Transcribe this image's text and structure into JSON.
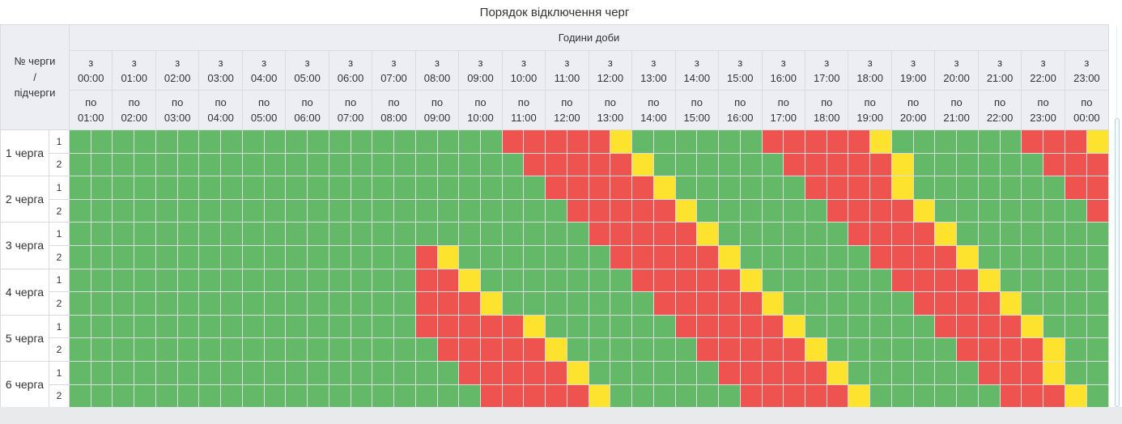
{
  "title": "Порядок відключення черг",
  "header": {
    "corner_lines": [
      "№ черги",
      "/",
      "підчерги"
    ],
    "day_hours_label": "Години доби",
    "columns": [
      {
        "from": "з 00:00",
        "to": "по 01:00"
      },
      {
        "from": "з 01:00",
        "to": "по 02:00"
      },
      {
        "from": "з 02:00",
        "to": "по 03:00"
      },
      {
        "from": "з 03:00",
        "to": "по 04:00"
      },
      {
        "from": "з 04:00",
        "to": "по 05:00"
      },
      {
        "from": "з 05:00",
        "to": "по 06:00"
      },
      {
        "from": "з 06:00",
        "to": "по 07:00"
      },
      {
        "from": "з 07:00",
        "to": "по 08:00"
      },
      {
        "from": "з 08:00",
        "to": "по 09:00"
      },
      {
        "from": "з 09:00",
        "to": "по 10:00"
      },
      {
        "from": "з 10:00",
        "to": "по 11:00"
      },
      {
        "from": "з 11:00",
        "to": "по 12:00"
      },
      {
        "from": "з 12:00",
        "to": "по 13:00"
      },
      {
        "from": "з 13:00",
        "to": "по 14:00"
      },
      {
        "from": "з 14:00",
        "to": "по 15:00"
      },
      {
        "from": "з 15:00",
        "to": "по 16:00"
      },
      {
        "from": "з 16:00",
        "to": "по 17:00"
      },
      {
        "from": "з 17:00",
        "to": "по 18:00"
      },
      {
        "from": "з 18:00",
        "to": "по 19:00"
      },
      {
        "from": "з 19:00",
        "to": "по 20:00"
      },
      {
        "from": "з 20:00",
        "to": "по 21:00"
      },
      {
        "from": "з 21:00",
        "to": "по 22:00"
      },
      {
        "from": "з 22:00",
        "to": "по 23:00"
      },
      {
        "from": "з 23:00",
        "to": "по 00:00"
      }
    ]
  },
  "chart_data": {
    "type": "heatmap",
    "title": "Порядок відключення черг",
    "x_axis_label": "Години доби",
    "y_axis_label": "№ черги / підчерги",
    "slot_minutes": 30,
    "hours": [
      "00:00",
      "01:00",
      "02:00",
      "03:00",
      "04:00",
      "05:00",
      "06:00",
      "07:00",
      "08:00",
      "09:00",
      "10:00",
      "11:00",
      "12:00",
      "13:00",
      "14:00",
      "15:00",
      "16:00",
      "17:00",
      "18:00",
      "19:00",
      "20:00",
      "21:00",
      "22:00",
      "23:00"
    ],
    "cell_colors": {
      "g": "#64b969",
      "r": "#ee5350",
      "y": "#fde32e"
    },
    "rows": [
      {
        "queue": "1 черга",
        "subqueue": "1",
        "slots": "ggggggggggggggggggggrrrrryggggggrrrrryggggggrrry"
      },
      {
        "queue": "1 черга",
        "subqueue": "2",
        "slots": "gggggggggggggggggggggrrrrryggggggrrrrryggggggrrr"
      },
      {
        "queue": "2 черга",
        "subqueue": "1",
        "slots": "ggggggggggggggggggggggrrrrryggggggrrrrygggggggrr"
      },
      {
        "queue": "2 черга",
        "subqueue": "2",
        "slots": "gggggggggggggggggggggggrrrrryggggggrrrrygggggggr"
      },
      {
        "queue": "3 черга",
        "subqueue": "1",
        "slots": "ggggggggggggggggggggggggrrrrryggggggrrrryggggggg"
      },
      {
        "queue": "3 черга",
        "subqueue": "2",
        "slots": "ggggggggggggggggrygggggggrrrrryggggggrrrrygggggg"
      },
      {
        "queue": "4 черга",
        "subqueue": "1",
        "slots": "ggggggggggggggggrrygggggggrrrrryggggggrrrryggggg"
      },
      {
        "queue": "4 черга",
        "subqueue": "2",
        "slots": "ggggggggggggggggrrrygggggggrrrrryggggggrrrrygggg"
      },
      {
        "queue": "5 черга",
        "subqueue": "1",
        "slots": "ggggggggggggggggrrrrryggggggrrrrryggggggrrrryggg"
      },
      {
        "queue": "5 черга",
        "subqueue": "2",
        "slots": "gggggggggggggggggrrrrryggggggrrrrryggggggrrrrygg"
      },
      {
        "queue": "6 черга",
        "subqueue": "1",
        "slots": "ggggggggggggggggggrrrrryggggggrrrrryggggggrrrygg"
      },
      {
        "queue": "6 черга",
        "subqueue": "2",
        "slots": "gggggggggggggggggggrrrrryggggggrrrrryggggggrrryg"
      }
    ]
  },
  "colors": {
    "power_on": "#64b969",
    "power_off": "#ee5350",
    "possible_off": "#fde32e",
    "header_bg": "#eceef3",
    "grid_border": "#d8dbdf",
    "page_strip": "#e9eaeb",
    "scrollbar": "#b6d4e9"
  }
}
